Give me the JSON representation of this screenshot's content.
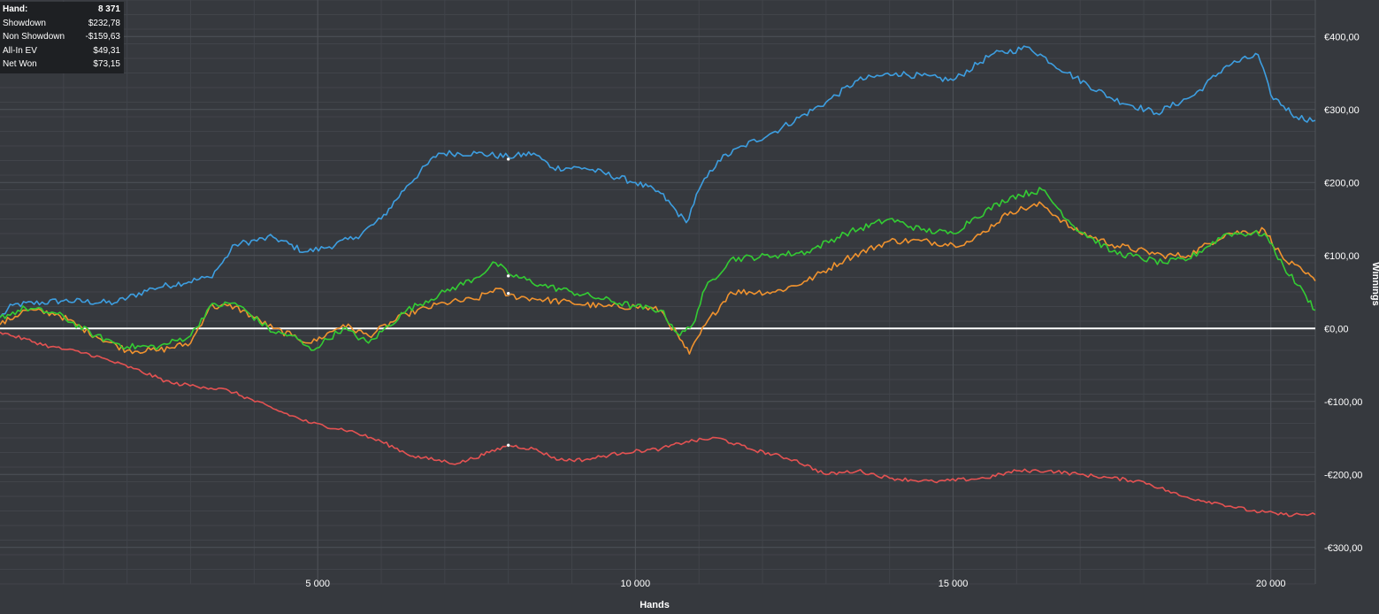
{
  "info_box": {
    "rows": [
      {
        "label": "Hand:",
        "value": "8 371"
      },
      {
        "label": "Showdown",
        "value": "$232,78"
      },
      {
        "label": "Non Showdown",
        "value": "-$159,63"
      },
      {
        "label": "All-In EV",
        "value": "$49,31"
      },
      {
        "label": "Net Won",
        "value": "$73,15"
      }
    ]
  },
  "chart_data": {
    "type": "line",
    "title": "",
    "xlabel": "Hands",
    "ylabel": "Winnings",
    "xlim": [
      0,
      20700
    ],
    "ylim": [
      -350,
      450
    ],
    "x_ticks": [
      5000,
      10000,
      15000,
      20000
    ],
    "x_tick_labels": [
      "5 000",
      "10 000",
      "15 000",
      "20 000"
    ],
    "y_ticks": [
      400,
      300,
      200,
      100,
      0,
      -100,
      -200,
      -300
    ],
    "y_tick_labels": [
      "€400,00",
      "€300,00",
      "€200,00",
      "€100,00",
      "€0,00",
      "-€100,00",
      "-€200,00",
      "-€300,00"
    ],
    "grid": true,
    "colors": {
      "background": "#36393e",
      "grid_major": "#4e5258",
      "grid_minor": "#41444a",
      "zero_line": "#ffffff"
    },
    "series": [
      {
        "color": "#3d9ee0",
        "points": [
          [
            0,
            15
          ],
          [
            200,
            32
          ],
          [
            1000,
            38
          ],
          [
            1800,
            35
          ],
          [
            2400,
            55
          ],
          [
            3300,
            70
          ],
          [
            3500,
            90
          ],
          [
            3700,
            115
          ],
          [
            4300,
            125
          ],
          [
            4800,
            105
          ],
          [
            5100,
            110
          ],
          [
            5600,
            125
          ],
          [
            6000,
            150
          ],
          [
            6400,
            195
          ],
          [
            6900,
            240
          ],
          [
            7500,
            240
          ],
          [
            8000,
            235
          ],
          [
            8400,
            240
          ],
          [
            8700,
            220
          ],
          [
            9200,
            220
          ],
          [
            10000,
            200
          ],
          [
            10400,
            185
          ],
          [
            10800,
            145
          ],
          [
            11000,
            190
          ],
          [
            11300,
            230
          ],
          [
            11700,
            250
          ],
          [
            12200,
            270
          ],
          [
            13000,
            310
          ],
          [
            13500,
            340
          ],
          [
            14100,
            350
          ],
          [
            15000,
            340
          ],
          [
            15600,
            375
          ],
          [
            16200,
            385
          ],
          [
            16800,
            350
          ],
          [
            17500,
            315
          ],
          [
            18200,
            295
          ],
          [
            18800,
            320
          ],
          [
            19300,
            360
          ],
          [
            19800,
            375
          ],
          [
            20000,
            320
          ],
          [
            20400,
            290
          ],
          [
            20700,
            285
          ]
        ]
      },
      {
        "color": "#f0922e",
        "points": [
          [
            0,
            5
          ],
          [
            400,
            25
          ],
          [
            900,
            20
          ],
          [
            1500,
            -10
          ],
          [
            2000,
            -30
          ],
          [
            2500,
            -30
          ],
          [
            3000,
            -20
          ],
          [
            3300,
            30
          ],
          [
            3700,
            30
          ],
          [
            4300,
            0
          ],
          [
            4600,
            -10
          ],
          [
            4900,
            -20
          ],
          [
            5400,
            5
          ],
          [
            5800,
            -10
          ],
          [
            6400,
            20
          ],
          [
            7000,
            35
          ],
          [
            7500,
            40
          ],
          [
            7800,
            55
          ],
          [
            8000,
            45
          ],
          [
            8500,
            40
          ],
          [
            9000,
            35
          ],
          [
            9500,
            30
          ],
          [
            10000,
            30
          ],
          [
            10400,
            25
          ],
          [
            10700,
            -15
          ],
          [
            10850,
            -35
          ],
          [
            11100,
            5
          ],
          [
            11500,
            50
          ],
          [
            12200,
            50
          ],
          [
            12700,
            65
          ],
          [
            13300,
            95
          ],
          [
            14000,
            120
          ],
          [
            14500,
            120
          ],
          [
            15000,
            115
          ],
          [
            15300,
            120
          ],
          [
            15900,
            160
          ],
          [
            16400,
            170
          ],
          [
            16900,
            135
          ],
          [
            17500,
            115
          ],
          [
            18300,
            100
          ],
          [
            18700,
            100
          ],
          [
            19300,
            130
          ],
          [
            19900,
            135
          ],
          [
            20200,
            95
          ],
          [
            20550,
            75
          ],
          [
            20700,
            65
          ]
        ]
      },
      {
        "color": "#33cc33",
        "points": [
          [
            0,
            15
          ],
          [
            400,
            28
          ],
          [
            900,
            20
          ],
          [
            1500,
            -10
          ],
          [
            2000,
            -25
          ],
          [
            2500,
            -25
          ],
          [
            3000,
            -10
          ],
          [
            3300,
            30
          ],
          [
            3700,
            35
          ],
          [
            4300,
            -5
          ],
          [
            4600,
            -10
          ],
          [
            4900,
            -30
          ],
          [
            5400,
            0
          ],
          [
            5800,
            -20
          ],
          [
            6400,
            25
          ],
          [
            7000,
            50
          ],
          [
            7500,
            70
          ],
          [
            7800,
            90
          ],
          [
            8000,
            75
          ],
          [
            8500,
            60
          ],
          [
            9000,
            50
          ],
          [
            9500,
            40
          ],
          [
            10000,
            30
          ],
          [
            10400,
            25
          ],
          [
            10700,
            -10
          ],
          [
            10900,
            5
          ],
          [
            11100,
            55
          ],
          [
            11500,
            95
          ],
          [
            12200,
            100
          ],
          [
            12700,
            105
          ],
          [
            13300,
            130
          ],
          [
            14000,
            150
          ],
          [
            14500,
            135
          ],
          [
            15000,
            130
          ],
          [
            15300,
            150
          ],
          [
            15900,
            180
          ],
          [
            16400,
            190
          ],
          [
            16900,
            140
          ],
          [
            17500,
            105
          ],
          [
            18300,
            90
          ],
          [
            18700,
            95
          ],
          [
            19300,
            130
          ],
          [
            19900,
            130
          ],
          [
            20200,
            85
          ],
          [
            20550,
            45
          ],
          [
            20700,
            25
          ]
        ]
      },
      {
        "color": "#e45252",
        "points": [
          [
            0,
            -5
          ],
          [
            800,
            -25
          ],
          [
            1400,
            -35
          ],
          [
            2100,
            -55
          ],
          [
            2700,
            -75
          ],
          [
            3200,
            -80
          ],
          [
            3600,
            -85
          ],
          [
            4300,
            -110
          ],
          [
            4900,
            -130
          ],
          [
            5500,
            -140
          ],
          [
            6000,
            -155
          ],
          [
            6500,
            -175
          ],
          [
            7200,
            -185
          ],
          [
            7700,
            -170
          ],
          [
            8000,
            -160
          ],
          [
            8400,
            -165
          ],
          [
            8800,
            -180
          ],
          [
            9200,
            -180
          ],
          [
            9800,
            -170
          ],
          [
            10400,
            -165
          ],
          [
            10800,
            -155
          ],
          [
            11300,
            -150
          ],
          [
            11800,
            -165
          ],
          [
            12500,
            -180
          ],
          [
            13000,
            -200
          ],
          [
            13500,
            -195
          ],
          [
            14000,
            -205
          ],
          [
            14700,
            -210
          ],
          [
            15500,
            -205
          ],
          [
            16000,
            -195
          ],
          [
            16500,
            -195
          ],
          [
            17000,
            -200
          ],
          [
            17500,
            -205
          ],
          [
            18000,
            -210
          ],
          [
            18600,
            -230
          ],
          [
            19200,
            -240
          ],
          [
            19700,
            -250
          ],
          [
            20200,
            -255
          ],
          [
            20700,
            -255
          ]
        ]
      }
    ],
    "markers": [
      {
        "x": 8000,
        "y": 232
      },
      {
        "x": 8000,
        "y": 72
      },
      {
        "x": 8000,
        "y": 48
      },
      {
        "x": 8000,
        "y": -160
      }
    ]
  }
}
